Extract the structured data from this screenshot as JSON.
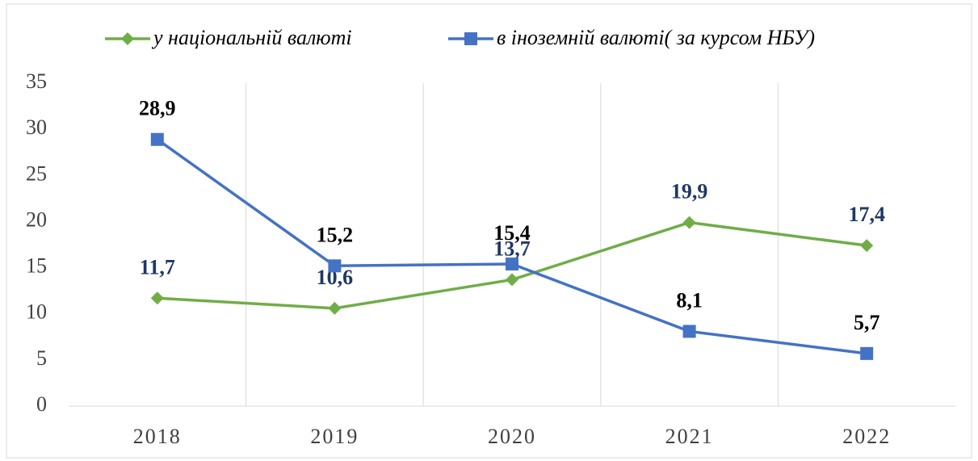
{
  "chart_data": {
    "type": "line",
    "categories": [
      "2018",
      "2019",
      "2020",
      "2021",
      "2022"
    ],
    "series": [
      {
        "name": "у національній валюті",
        "color": "#70ad47",
        "marker": "diamond",
        "label_color": "#1f3864",
        "values": [
          11.7,
          10.6,
          13.7,
          19.9,
          17.4
        ],
        "value_labels": [
          "11,7",
          "10,6",
          "13,7",
          "19,9",
          "17,4"
        ]
      },
      {
        "name": "в іноземній валюті( за курсом НБУ)",
        "color": "#4472c4",
        "marker": "square",
        "label_color": "#000000",
        "values": [
          28.9,
          15.2,
          15.4,
          8.1,
          5.7
        ],
        "value_labels": [
          "28,9",
          "15,2",
          "15,4",
          "8,1",
          "5,7"
        ]
      }
    ],
    "ylim": [
      0,
      35
    ],
    "yticks": [
      0,
      5,
      10,
      15,
      20,
      25,
      30,
      35
    ],
    "grid": "vertical",
    "legend": "top"
  }
}
